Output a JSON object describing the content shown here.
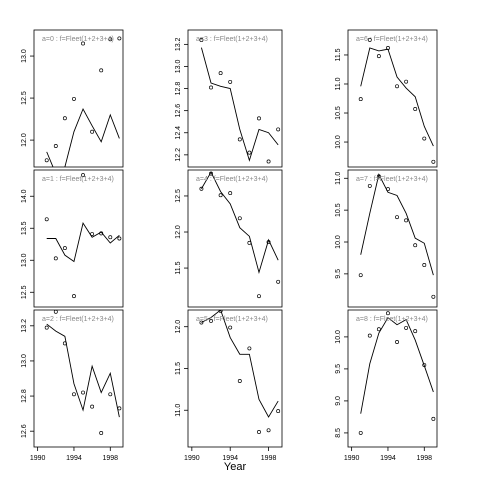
{
  "chart_data": [
    {
      "type": "line",
      "title": "a=0 : f=Fleet(1+2+3+4)",
      "x": [
        1991,
        1992,
        1993,
        1994,
        1995,
        1996,
        1997,
        1998,
        1999
      ],
      "points": [
        11.76,
        11.93,
        12.26,
        12.49,
        13.15,
        12.1,
        12.83,
        13.2,
        13.21
      ],
      "line": [
        11.86,
        11.6,
        11.68,
        12.1,
        12.37,
        12.17,
        11.98,
        12.3,
        12.02
      ],
      "xlim": [
        1989.6,
        1999.4
      ],
      "ylim": [
        11.68,
        13.31
      ],
      "yticks": [
        {
          "value": 12,
          "label": "12.0"
        },
        12.5,
        {
          "value": 13,
          "label": "13.0"
        }
      ]
    },
    {
      "type": "line",
      "title": "a=3 : f=Fleet(1+2+3+4)",
      "x": [
        1991,
        1992,
        1993,
        1994,
        1995,
        1996,
        1997,
        1998,
        1999
      ],
      "points": [
        13.24,
        12.81,
        12.94,
        12.86,
        12.34,
        12.22,
        12.53,
        12.14,
        12.43
      ],
      "line": [
        13.17,
        12.85,
        12.82,
        12.8,
        12.43,
        12.15,
        12.43,
        12.4,
        12.29
      ],
      "xlim": [
        1989.6,
        1999.4
      ],
      "ylim": [
        12.09,
        13.33
      ],
      "yticks": [
        12.2,
        12.4,
        12.6,
        12.8,
        {
          "value": 13,
          "label": "13.0"
        },
        13.2
      ]
    },
    {
      "type": "line",
      "title": "a=6 : f=Fleet(1+2+3+4)",
      "x": [
        1991,
        1992,
        1993,
        1994,
        1995,
        1996,
        1997,
        1998,
        1999
      ],
      "points": [
        10.74,
        11.76,
        11.48,
        11.62,
        10.96,
        11.04,
        10.57,
        10.06,
        9.66
      ],
      "line": [
        10.96,
        11.62,
        11.57,
        11.6,
        11.12,
        10.93,
        10.78,
        10.27,
        9.93
      ],
      "xlim": [
        1989.6,
        1999.4
      ],
      "ylim": [
        9.57,
        11.93
      ],
      "yticks": [
        {
          "value": 10,
          "label": "10.0"
        },
        10.5,
        {
          "value": 11,
          "label": "11.0"
        },
        11.5
      ]
    },
    {
      "type": "line",
      "title": "a=1 : f=Fleet(1+2+3+4)",
      "x": [
        1991,
        1992,
        1993,
        1994,
        1995,
        1996,
        1997,
        1998,
        1999
      ],
      "points": [
        13.64,
        13.03,
        13.19,
        12.44,
        14.33,
        13.41,
        13.42,
        13.36,
        13.34
      ],
      "line": [
        13.34,
        13.34,
        13.08,
        12.98,
        13.58,
        13.36,
        13.44,
        13.27,
        13.39
      ],
      "xlim": [
        1989.6,
        1999.4
      ],
      "ylim": [
        12.27,
        14.41
      ],
      "yticks": [
        12.5,
        {
          "value": 13,
          "label": "13.0"
        },
        13.5,
        {
          "value": 14,
          "label": "14.0"
        }
      ]
    },
    {
      "type": "line",
      "title": "a=4 : f=Fleet(1+2+3+4)",
      "x": [
        1991,
        1992,
        1993,
        1994,
        1995,
        1996,
        1997,
        1998,
        1999
      ],
      "points": [
        12.6,
        12.81,
        12.51,
        12.54,
        12.19,
        11.85,
        11.11,
        11.86,
        11.31
      ],
      "line": [
        12.6,
        12.83,
        12.56,
        12.39,
        12.06,
        11.94,
        11.44,
        11.89,
        11.61
      ],
      "xlim": [
        1989.6,
        1999.4
      ],
      "ylim": [
        10.96,
        12.86
      ],
      "yticks": [
        11.5,
        {
          "value": 12,
          "label": "12.0"
        },
        12.5
      ]
    },
    {
      "type": "line",
      "title": "a=7 : f=Fleet(1+2+3+4)",
      "x": [
        1991,
        1992,
        1993,
        1994,
        1995,
        1996,
        1997,
        1998,
        1999
      ],
      "points": [
        9.48,
        10.88,
        11.03,
        10.83,
        10.39,
        10.34,
        9.95,
        9.64,
        9.14
      ],
      "line": [
        9.8,
        10.45,
        11.06,
        10.78,
        10.73,
        10.45,
        10.06,
        9.98,
        9.48
      ],
      "xlim": [
        1989.6,
        1999.4
      ],
      "ylim": [
        8.98,
        11.13
      ],
      "yticks": [
        9.5,
        {
          "value": 10,
          "label": "10.0"
        },
        10.5,
        {
          "value": 11,
          "label": "11.0"
        }
      ]
    },
    {
      "type": "line",
      "title": "a=2 : f=Fleet(1+2+3+4)",
      "x": [
        1991,
        1992,
        1993,
        1994,
        1995,
        1996,
        1997,
        1998,
        1999
      ],
      "points": [
        13.19,
        13.28,
        13.1,
        12.81,
        12.82,
        12.74,
        12.59,
        12.81,
        12.73
      ],
      "line": [
        13.21,
        13.17,
        13.14,
        12.87,
        12.72,
        12.97,
        12.82,
        12.93,
        12.68
      ],
      "xlim": [
        1989.6,
        1999.4
      ],
      "ylim": [
        12.51,
        13.29
      ],
      "yticks": [
        12.6,
        12.8,
        {
          "value": 13,
          "label": "13.0"
        },
        13.2
      ],
      "xticks": [
        1990,
        1994,
        1998
      ]
    },
    {
      "type": "line",
      "title": "a=5 : f=Fleet(1+2+3+4)",
      "x": [
        1991,
        1992,
        1993,
        1994,
        1995,
        1996,
        1997,
        1998,
        1999
      ],
      "points": [
        12.05,
        12.07,
        12.19,
        11.99,
        11.35,
        11.74,
        10.74,
        10.76,
        10.99
      ],
      "line": [
        12.05,
        12.11,
        12.2,
        11.87,
        11.67,
        11.67,
        11.13,
        10.92,
        11.11
      ],
      "xlim": [
        1989.6,
        1999.4
      ],
      "ylim": [
        10.56,
        12.2
      ],
      "yticks": [
        {
          "value": 11,
          "label": "11.0"
        },
        11.5,
        {
          "value": 12,
          "label": "12.0"
        }
      ],
      "xticks": [
        1990,
        1994,
        1998
      ],
      "xlabel": "Year"
    },
    {
      "type": "line",
      "title": "a=8 : f=Fleet(1+2+3+4)",
      "x": [
        1991,
        1992,
        1993,
        1994,
        1995,
        1996,
        1997,
        1998,
        1999
      ],
      "points": [
        8.5,
        10.02,
        10.12,
        10.37,
        9.92,
        10.14,
        10.09,
        9.56,
        8.72
      ],
      "line": [
        8.8,
        9.58,
        10.06,
        10.3,
        10.19,
        10.27,
        9.95,
        9.55,
        9.14
      ],
      "xlim": [
        1989.6,
        1999.4
      ],
      "ylim": [
        8.28,
        10.42
      ],
      "yticks": [
        8.5,
        {
          "value": 9,
          "label": "9.0"
        },
        9.5,
        {
          "value": 10,
          "label": "10.0"
        }
      ],
      "xticks": [
        1990,
        1994,
        1998
      ]
    }
  ]
}
